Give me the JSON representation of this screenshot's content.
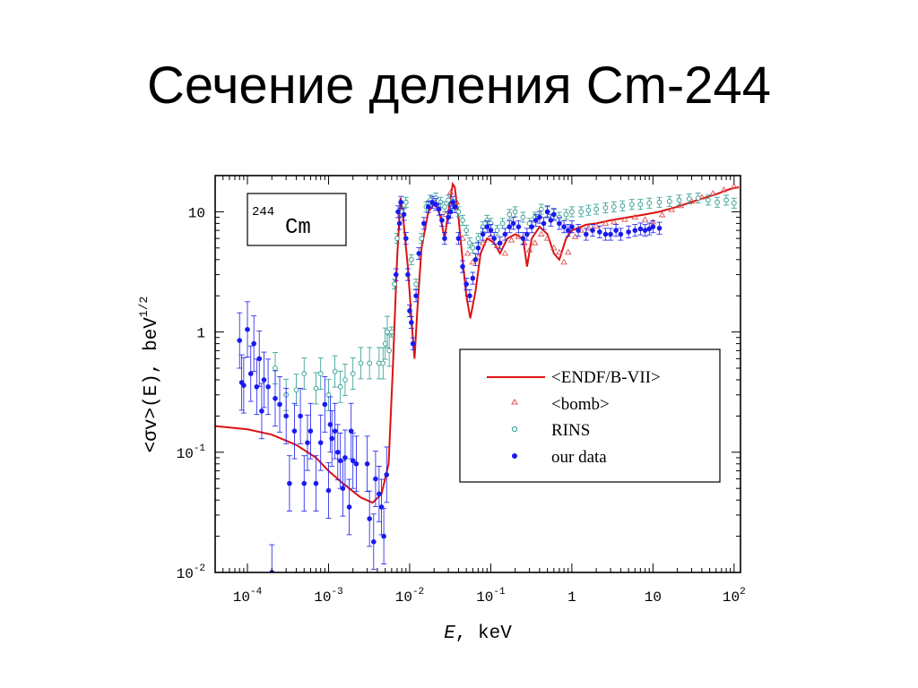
{
  "slide": {
    "title": "Сечение деления Cm-244"
  },
  "chart_data": {
    "type": "scatter",
    "x_scale": "log",
    "y_scale": "log",
    "xlim": [
      4e-05,
      120
    ],
    "ylim": [
      0.01,
      20
    ],
    "xlabel_italic": "E",
    "xlabel_rest": ", keV",
    "ylabel_main": "<σv>(E), beV",
    "ylabel_sup": "1/2",
    "x_ticks": [
      {
        "base": "10",
        "exp": "-4",
        "value": 0.0001
      },
      {
        "base": "10",
        "exp": "-3",
        "value": 0.001
      },
      {
        "base": "10",
        "exp": "-2",
        "value": 0.01
      },
      {
        "base": "10",
        "exp": "-1",
        "value": 0.1
      },
      {
        "base": "1",
        "exp": "",
        "value": 1
      },
      {
        "base": "10",
        "exp": "",
        "value": 10
      },
      {
        "base": "10",
        "exp": "2",
        "value": 100
      }
    ],
    "y_ticks": [
      {
        "base": "10",
        "exp": "",
        "value": 10
      },
      {
        "base": "1",
        "exp": "",
        "value": 1
      },
      {
        "base": "10",
        "exp": "-1",
        "value": 0.1
      },
      {
        "base": "10",
        "exp": "-2",
        "value": 0.01
      }
    ],
    "annotation": {
      "sup": "244",
      "text": "Cm"
    },
    "legend_placement": "center-right",
    "series": [
      {
        "name": "<ENDF/B-VII>",
        "kind": "line",
        "color": "#dd1111",
        "points": [
          [
            4e-05,
            0.165
          ],
          [
            0.0001,
            0.155
          ],
          [
            0.0002,
            0.14
          ],
          [
            0.0004,
            0.115
          ],
          [
            0.0007,
            0.09
          ],
          [
            0.001,
            0.07
          ],
          [
            0.0015,
            0.055
          ],
          [
            0.0025,
            0.042
          ],
          [
            0.0035,
            0.038
          ],
          [
            0.0045,
            0.045
          ],
          [
            0.0055,
            0.08
          ],
          [
            0.0062,
            0.5
          ],
          [
            0.007,
            4.0
          ],
          [
            0.0077,
            13.0
          ],
          [
            0.0082,
            10.0
          ],
          [
            0.0095,
            3.5
          ],
          [
            0.0108,
            1.0
          ],
          [
            0.0115,
            0.6
          ],
          [
            0.0125,
            1.6
          ],
          [
            0.014,
            5.0
          ],
          [
            0.017,
            10.0
          ],
          [
            0.021,
            12.0
          ],
          [
            0.024,
            9.0
          ],
          [
            0.027,
            6.0
          ],
          [
            0.03,
            10.0
          ],
          [
            0.034,
            17.0
          ],
          [
            0.036,
            16.0
          ],
          [
            0.04,
            9.0
          ],
          [
            0.045,
            4.0
          ],
          [
            0.05,
            2.0
          ],
          [
            0.056,
            1.3
          ],
          [
            0.065,
            2.2
          ],
          [
            0.075,
            4.5
          ],
          [
            0.09,
            6.0
          ],
          [
            0.11,
            5.5
          ],
          [
            0.13,
            4.5
          ],
          [
            0.16,
            6.0
          ],
          [
            0.2,
            6.5
          ],
          [
            0.25,
            6.0
          ],
          [
            0.28,
            3.5
          ],
          [
            0.32,
            6.0
          ],
          [
            0.4,
            7.5
          ],
          [
            0.5,
            6.5
          ],
          [
            0.6,
            4.5
          ],
          [
            0.7,
            4.0
          ],
          [
            0.85,
            6.0
          ],
          [
            1.0,
            7.0
          ],
          [
            1.5,
            7.8
          ],
          [
            2.0,
            8.0
          ],
          [
            3.0,
            8.5
          ],
          [
            5.0,
            9.0
          ],
          [
            8.0,
            9.5
          ],
          [
            12.0,
            10.0
          ],
          [
            20.0,
            11.0
          ],
          [
            35.0,
            12.5
          ],
          [
            60.0,
            14.0
          ],
          [
            90.0,
            15.5
          ],
          [
            115.0,
            16.0
          ]
        ]
      },
      {
        "name": "<bomb>",
        "kind": "triangle",
        "color": "#dd5555",
        "points": [
          [
            0.028,
            9.5
          ],
          [
            0.032,
            14.5
          ],
          [
            0.038,
            12.0
          ],
          [
            0.045,
            6.0
          ],
          [
            0.052,
            4.5
          ],
          [
            0.06,
            3.8
          ],
          [
            0.07,
            4.2
          ],
          [
            0.08,
            5.5
          ],
          [
            0.1,
            6.2
          ],
          [
            0.12,
            5.2
          ],
          [
            0.15,
            4.5
          ],
          [
            0.18,
            5.8
          ],
          [
            0.22,
            6.2
          ],
          [
            0.26,
            5.5
          ],
          [
            0.3,
            4.8
          ],
          [
            0.35,
            5.5
          ],
          [
            0.42,
            6.5
          ],
          [
            0.5,
            6.0
          ],
          [
            0.6,
            5.0
          ],
          [
            0.7,
            4.6
          ],
          [
            0.8,
            3.8
          ],
          [
            0.9,
            4.6
          ],
          [
            1.1,
            6.2
          ],
          [
            1.3,
            7.0
          ],
          [
            1.6,
            7.3
          ],
          [
            2.0,
            7.6
          ],
          [
            2.6,
            8.0
          ],
          [
            3.3,
            8.2
          ],
          [
            4.5,
            8.6
          ],
          [
            6.0,
            9.0
          ],
          [
            8.0,
            8.6
          ],
          [
            10.0,
            8.2
          ],
          [
            13.0,
            9.4
          ],
          [
            17.0,
            10.4
          ],
          [
            22.0,
            11.2
          ],
          [
            30.0,
            12.2
          ],
          [
            40.0,
            13.2
          ],
          [
            55.0,
            14.2
          ],
          [
            75.0,
            15.2
          ],
          [
            100.0,
            16.2
          ]
        ]
      },
      {
        "name": "RINS",
        "kind": "circle",
        "color": "#2a9a8e",
        "points": [
          [
            0.00022,
            0.5
          ],
          [
            0.0003,
            0.3
          ],
          [
            0.0004,
            0.33
          ],
          [
            0.0005,
            0.45
          ],
          [
            0.0007,
            0.34
          ],
          [
            0.0008,
            0.45
          ],
          [
            0.001,
            0.3
          ],
          [
            0.0012,
            0.47
          ],
          [
            0.0014,
            0.35
          ],
          [
            0.0016,
            0.4
          ],
          [
            0.002,
            0.45
          ],
          [
            0.0025,
            0.55
          ],
          [
            0.0032,
            0.55
          ],
          [
            0.0042,
            0.55
          ],
          [
            0.0047,
            0.55
          ],
          [
            0.005,
            0.8
          ],
          [
            0.0053,
            1.0
          ],
          [
            0.0056,
            0.7
          ],
          [
            0.006,
            1.0
          ],
          [
            0.0065,
            2.5
          ],
          [
            0.007,
            6.0
          ],
          [
            0.008,
            10.0
          ],
          [
            0.009,
            12.0
          ],
          [
            0.0105,
            4.0
          ],
          [
            0.012,
            2.5
          ],
          [
            0.014,
            6.0
          ],
          [
            0.016,
            11.0
          ],
          [
            0.018,
            12.5
          ],
          [
            0.021,
            13.0
          ],
          [
            0.024,
            12.0
          ],
          [
            0.027,
            11.0
          ],
          [
            0.03,
            12.5
          ],
          [
            0.035,
            11.5
          ],
          [
            0.04,
            10.0
          ],
          [
            0.045,
            8.5
          ],
          [
            0.05,
            7.0
          ],
          [
            0.055,
            5.5
          ],
          [
            0.06,
            5.0
          ],
          [
            0.07,
            6.0
          ],
          [
            0.08,
            7.5
          ],
          [
            0.09,
            8.5
          ],
          [
            0.1,
            8.0
          ],
          [
            0.12,
            7.0
          ],
          [
            0.14,
            8.0
          ],
          [
            0.17,
            9.5
          ],
          [
            0.2,
            10.0
          ],
          [
            0.25,
            9.0
          ],
          [
            0.3,
            8.0
          ],
          [
            0.35,
            9.0
          ],
          [
            0.42,
            10.5
          ],
          [
            0.5,
            10.0
          ],
          [
            0.6,
            9.5
          ],
          [
            0.7,
            9.0
          ],
          [
            0.85,
            9.5
          ],
          [
            1.0,
            10.0
          ],
          [
            1.3,
            10.0
          ],
          [
            1.6,
            10.3
          ],
          [
            2.0,
            10.5
          ],
          [
            2.6,
            10.8
          ],
          [
            3.3,
            11.0
          ],
          [
            4.2,
            11.2
          ],
          [
            5.5,
            11.5
          ],
          [
            7.0,
            11.5
          ],
          [
            9.0,
            11.8
          ],
          [
            12.0,
            12.0
          ],
          [
            16.0,
            12.2
          ],
          [
            21.0,
            12.5
          ],
          [
            28.0,
            12.8
          ],
          [
            36.0,
            13.0
          ],
          [
            48.0,
            12.5
          ],
          [
            62.0,
            12.0
          ],
          [
            80.0,
            12.5
          ],
          [
            100.0,
            11.8
          ]
        ]
      },
      {
        "name": "our data",
        "kind": "dot",
        "color": "#1a1aee",
        "points": [
          [
            8e-05,
            0.85
          ],
          [
            8.5e-05,
            0.38
          ],
          [
            9e-05,
            0.36
          ],
          [
            0.0001,
            1.05
          ],
          [
            0.00011,
            0.45
          ],
          [
            0.00012,
            0.8
          ],
          [
            0.00013,
            0.35
          ],
          [
            0.00014,
            0.6
          ],
          [
            0.00015,
            0.22
          ],
          [
            0.00016,
            0.4
          ],
          [
            0.00018,
            0.35
          ],
          [
            0.0002,
            0.01
          ],
          [
            0.00022,
            0.28
          ],
          [
            0.00025,
            0.25
          ],
          [
            0.0003,
            0.2
          ],
          [
            0.00033,
            0.055
          ],
          [
            0.00038,
            0.15
          ],
          [
            0.00045,
            0.2
          ],
          [
            0.0005,
            0.055
          ],
          [
            0.00055,
            0.12
          ],
          [
            0.0006,
            0.15
          ],
          [
            0.0007,
            0.055
          ],
          [
            0.0008,
            0.12
          ],
          [
            0.0009,
            0.25
          ],
          [
            0.001,
            0.048
          ],
          [
            0.00105,
            0.17
          ],
          [
            0.0011,
            0.13
          ],
          [
            0.0012,
            0.15
          ],
          [
            0.0013,
            0.1
          ],
          [
            0.0014,
            0.085
          ],
          [
            0.0015,
            0.05
          ],
          [
            0.0016,
            0.09
          ],
          [
            0.0018,
            0.035
          ],
          [
            0.0019,
            0.15
          ],
          [
            0.002,
            0.085
          ],
          [
            0.0022,
            0.08
          ],
          [
            0.003,
            0.08
          ],
          [
            0.0032,
            0.028
          ],
          [
            0.0036,
            0.018
          ],
          [
            0.0038,
            0.06
          ],
          [
            0.0042,
            0.045
          ],
          [
            0.0045,
            0.035
          ],
          [
            0.0048,
            0.02
          ],
          [
            0.0052,
            0.065
          ],
          [
            0.0068,
            3.0
          ],
          [
            0.0072,
            10.0
          ],
          [
            0.0075,
            8.0
          ],
          [
            0.0078,
            12.0
          ],
          [
            0.0085,
            9.5
          ],
          [
            0.009,
            6.0
          ],
          [
            0.0095,
            3.0
          ],
          [
            0.01,
            1.5
          ],
          [
            0.0105,
            1.2
          ],
          [
            0.011,
            0.8
          ],
          [
            0.012,
            2.0
          ],
          [
            0.013,
            4.5
          ],
          [
            0.015,
            8.0
          ],
          [
            0.017,
            11.0
          ],
          [
            0.019,
            12.0
          ],
          [
            0.021,
            11.5
          ],
          [
            0.023,
            10.5
          ],
          [
            0.025,
            8.5
          ],
          [
            0.027,
            6.0
          ],
          [
            0.03,
            9.0
          ],
          [
            0.032,
            10.0
          ],
          [
            0.034,
            12.0
          ],
          [
            0.036,
            11.0
          ],
          [
            0.04,
            6.0
          ],
          [
            0.045,
            3.5
          ],
          [
            0.05,
            2.5
          ],
          [
            0.055,
            2.0
          ],
          [
            0.06,
            2.8
          ],
          [
            0.065,
            4.0
          ],
          [
            0.07,
            5.0
          ],
          [
            0.08,
            6.5
          ],
          [
            0.09,
            7.5
          ],
          [
            0.1,
            7.0
          ],
          [
            0.11,
            6.0
          ],
          [
            0.13,
            5.5
          ],
          [
            0.15,
            6.5
          ],
          [
            0.17,
            7.5
          ],
          [
            0.19,
            8.0
          ],
          [
            0.22,
            7.5
          ],
          [
            0.25,
            6.0
          ],
          [
            0.28,
            6.5
          ],
          [
            0.32,
            7.5
          ],
          [
            0.36,
            8.5
          ],
          [
            0.4,
            9.0
          ],
          [
            0.45,
            8.0
          ],
          [
            0.5,
            10.0
          ],
          [
            0.55,
            8.5
          ],
          [
            0.6,
            9.5
          ],
          [
            0.7,
            8.0
          ],
          [
            0.8,
            7.5
          ],
          [
            0.9,
            7.0
          ],
          [
            1.0,
            7.5
          ],
          [
            1.2,
            7.0
          ],
          [
            1.5,
            6.5
          ],
          [
            1.8,
            7.0
          ],
          [
            2.2,
            6.8
          ],
          [
            2.6,
            6.5
          ],
          [
            3.0,
            6.5
          ],
          [
            3.5,
            7.0
          ],
          [
            4.0,
            6.5
          ],
          [
            5.0,
            6.8
          ],
          [
            6.0,
            7.0
          ],
          [
            7.0,
            7.2
          ],
          [
            8.0,
            7.0
          ],
          [
            9.0,
            7.2
          ],
          [
            10.0,
            7.5
          ],
          [
            12.0,
            7.3
          ]
        ]
      }
    ]
  }
}
